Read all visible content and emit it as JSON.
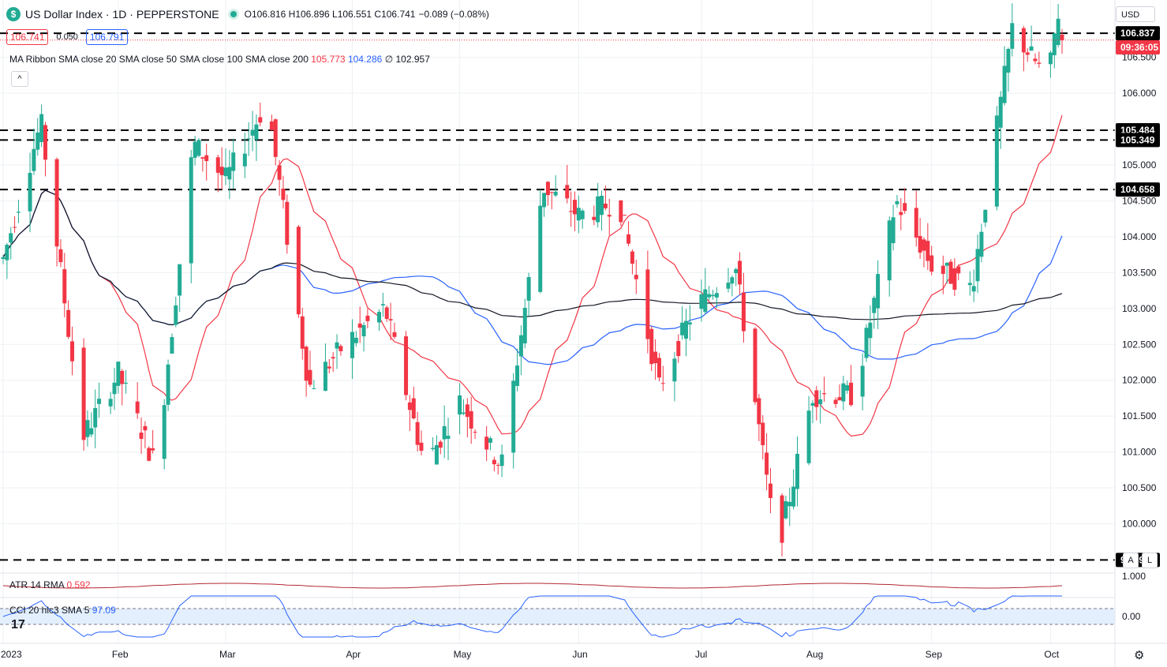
{
  "header": {
    "title": "US Dollar Index · 1D · PEPPERSTONE",
    "ohlc": "O106.816 H106.896 L106.551 C106.741",
    "change": "−0.089 (−0.08%)",
    "bid": "106.741",
    "spread": "0.050",
    "ask": "106.791",
    "ma_ribbon_label": "MA Ribbon SMA close 20 SMA close 50 SMA close 100 SMA close 200",
    "ma20": "105.773",
    "ma50": "104.286",
    "ma100": "∅",
    "ma200": "102.957",
    "collapse": "^",
    "currency": "USD"
  },
  "atr": {
    "label": "ATR 14 RMA",
    "value": "0.592",
    "axis": "1.000"
  },
  "cci": {
    "label": "CCI 20 hlc3 SMA 5",
    "value": "97.09",
    "axis": "0.00"
  },
  "axis_buttons": {
    "a": "A",
    "l": "L"
  },
  "badges": {
    "price": "106.837",
    "countdown": "09:36:05",
    "l1": "105.484",
    "l2": "105.349",
    "l3": "104.658",
    "l4": "99.495"
  },
  "colors": {
    "up": "#22ab94",
    "down": "#f23645",
    "ma20": "#f23645",
    "ma50": "#2962ff",
    "ma200": "#131722",
    "grid": "#eef0f3"
  },
  "chart_data": {
    "type": "candlestick",
    "title": "US Dollar Index · 1D · PEPPERSTONE",
    "ylim": [
      99.4,
      107.3
    ],
    "y_ticks": [
      "100.000",
      "100.500",
      "101.000",
      "101.500",
      "102.000",
      "102.500",
      "103.000",
      "103.500",
      "104.000",
      "104.500",
      "105.000",
      "105.500",
      "106.000",
      "106.500"
    ],
    "x_ticks": [
      "2023",
      "Feb",
      "Mar",
      "Apr",
      "May",
      "Jun",
      "Jul",
      "Aug",
      "Sep",
      "Oct"
    ],
    "x_tick_dates": [
      "2023-01-02",
      "2023-02-01",
      "2023-03-01",
      "2023-04-03",
      "2023-05-01",
      "2023-06-01",
      "2023-07-03",
      "2023-08-01",
      "2023-09-01",
      "2023-10-02"
    ],
    "horizontal_levels": [
      106.837,
      105.484,
      105.349,
      104.658,
      99.495
    ],
    "ohlc_monthly": [
      {
        "month": "2023-01",
        "open": 103.5,
        "high": 105.6,
        "low": 101.2,
        "close": 102.1
      },
      {
        "month": "2023-02",
        "open": 102.1,
        "high": 105.3,
        "low": 100.8,
        "close": 104.8
      },
      {
        "month": "2023-03",
        "open": 104.8,
        "high": 105.9,
        "low": 101.9,
        "close": 102.5
      },
      {
        "month": "2023-04",
        "open": 102.5,
        "high": 103.0,
        "low": 100.8,
        "close": 101.7
      },
      {
        "month": "2023-05",
        "open": 101.7,
        "high": 104.7,
        "low": 100.8,
        "close": 104.3
      },
      {
        "month": "2023-06",
        "open": 104.3,
        "high": 104.5,
        "low": 101.9,
        "close": 103.0
      },
      {
        "month": "2023-07",
        "open": 103.0,
        "high": 103.6,
        "low": 99.6,
        "close": 101.8
      },
      {
        "month": "2023-08",
        "open": 101.8,
        "high": 104.5,
        "low": 101.8,
        "close": 103.6
      },
      {
        "month": "2023-09",
        "open": 103.6,
        "high": 106.9,
        "low": 103.3,
        "close": 106.2
      },
      {
        "month": "2023-10",
        "open": 106.2,
        "high": 107.2,
        "low": 106.5,
        "close": 106.741
      }
    ],
    "last": {
      "open": 106.816,
      "high": 106.896,
      "low": 106.551,
      "close": 106.741
    },
    "indicators": [
      {
        "name": "SMA close 20",
        "value": 105.773
      },
      {
        "name": "SMA close 50",
        "value": 104.286
      },
      {
        "name": "SMA close 200",
        "value": 102.957
      },
      {
        "name": "ATR 14 RMA",
        "value": 0.592
      },
      {
        "name": "CCI 20 hlc3 SMA 5",
        "value": 97.09
      }
    ]
  }
}
